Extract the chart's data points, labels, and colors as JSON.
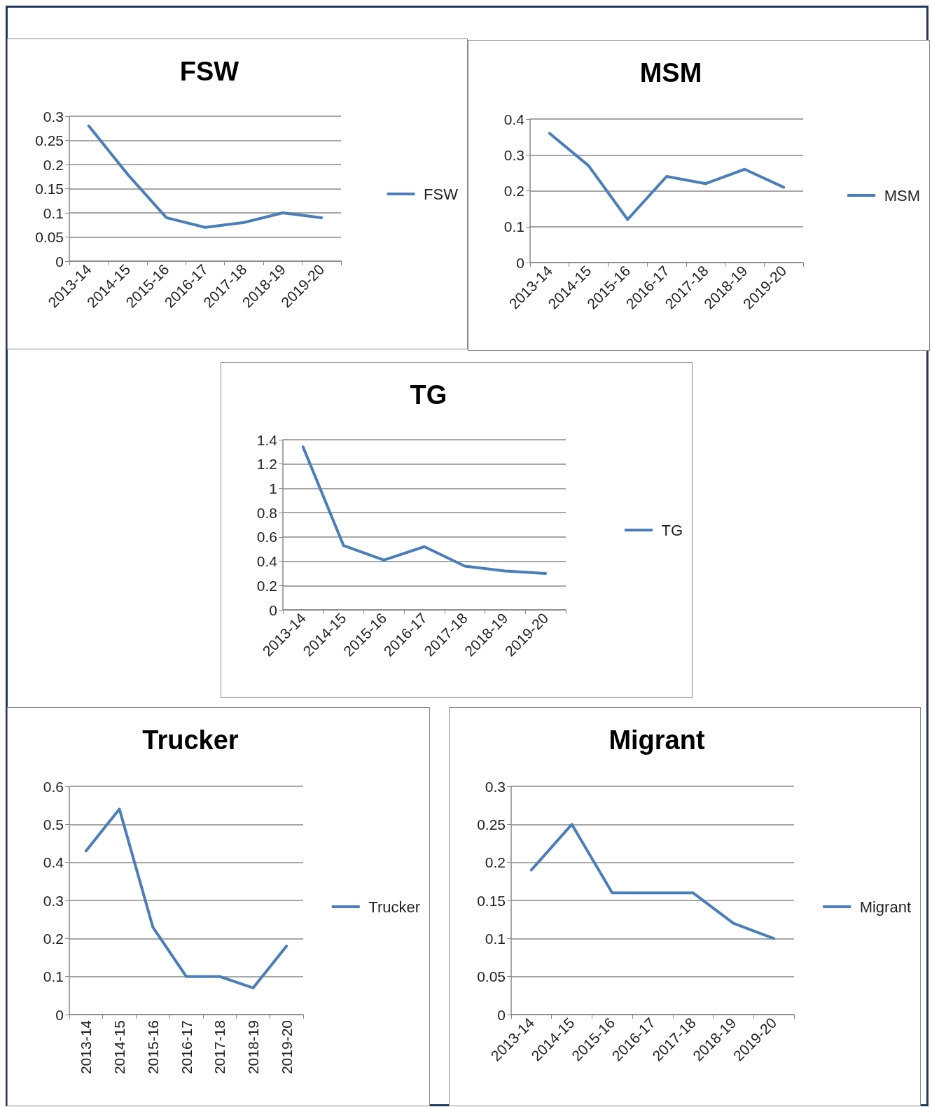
{
  "chart_data": [
    {
      "type": "line",
      "title": "FSW",
      "categories": [
        "2013-14",
        "2014-15",
        "2015-16",
        "2016-17",
        "2017-18",
        "2018-19",
        "2019-20"
      ],
      "series": [
        {
          "name": "FSW",
          "color": "#4a7ebb",
          "values": [
            0.28,
            0.18,
            0.09,
            0.07,
            0.08,
            0.1,
            0.09
          ]
        }
      ],
      "ylim": [
        0,
        0.3
      ],
      "yticks": [
        0,
        0.05,
        0.1,
        0.15,
        0.2,
        0.25,
        0.3
      ],
      "grid": "y",
      "legend": "right",
      "marker": "none"
    },
    {
      "type": "line",
      "title": "MSM",
      "categories": [
        "2013-14",
        "2014-15",
        "2015-16",
        "2016-17",
        "2017-18",
        "2018-19",
        "2019-20"
      ],
      "series": [
        {
          "name": "MSM",
          "color": "#4a7ebb",
          "values": [
            0.36,
            0.27,
            0.12,
            0.24,
            0.22,
            0.26,
            0.21
          ]
        }
      ],
      "ylim": [
        0,
        0.4
      ],
      "yticks": [
        0,
        0.1,
        0.2,
        0.3,
        0.4
      ],
      "grid": "y",
      "legend": "right",
      "marker": "none"
    },
    {
      "type": "line",
      "title": "TG",
      "categories": [
        "2013-14",
        "2014-15",
        "2015-16",
        "2016-17",
        "2017-18",
        "2018-19",
        "2019-20"
      ],
      "series": [
        {
          "name": "TG",
          "color": "#4a7ebb",
          "values": [
            1.34,
            0.53,
            0.41,
            0.52,
            0.36,
            0.32,
            0.3
          ]
        }
      ],
      "ylim": [
        0,
        1.4
      ],
      "yticks": [
        0,
        0.2,
        0.4,
        0.6,
        0.8,
        1,
        1.2,
        1.4
      ],
      "grid": "y",
      "legend": "right",
      "marker": "none"
    },
    {
      "type": "line",
      "title": "Trucker",
      "categories": [
        "2013-14",
        "2014-15",
        "2015-16",
        "2016-17",
        "2017-18",
        "2018-19",
        "2019-20"
      ],
      "series": [
        {
          "name": "Trucker",
          "color": "#4a7ebb",
          "values": [
            0.43,
            0.54,
            0.23,
            0.1,
            0.1,
            0.07,
            0.18
          ]
        }
      ],
      "ylim": [
        0,
        0.6
      ],
      "yticks": [
        0,
        0.1,
        0.2,
        0.3,
        0.4,
        0.5,
        0.6
      ],
      "grid": "y",
      "legend": "right",
      "marker": "none"
    },
    {
      "type": "line",
      "title": "Migrant",
      "categories": [
        "2013-14",
        "2014-15",
        "2015-16",
        "2016-17",
        "2017-18",
        "2018-19",
        "2019-20"
      ],
      "series": [
        {
          "name": "Migrant",
          "color": "#4a7ebb",
          "values": [
            0.19,
            0.25,
            0.16,
            0.16,
            0.16,
            0.12,
            0.1
          ]
        }
      ],
      "ylim": [
        0,
        0.3
      ],
      "yticks": [
        0,
        0.05,
        0.1,
        0.15,
        0.2,
        0.25,
        0.3
      ],
      "grid": "y",
      "legend": "right",
      "marker": "none"
    }
  ]
}
